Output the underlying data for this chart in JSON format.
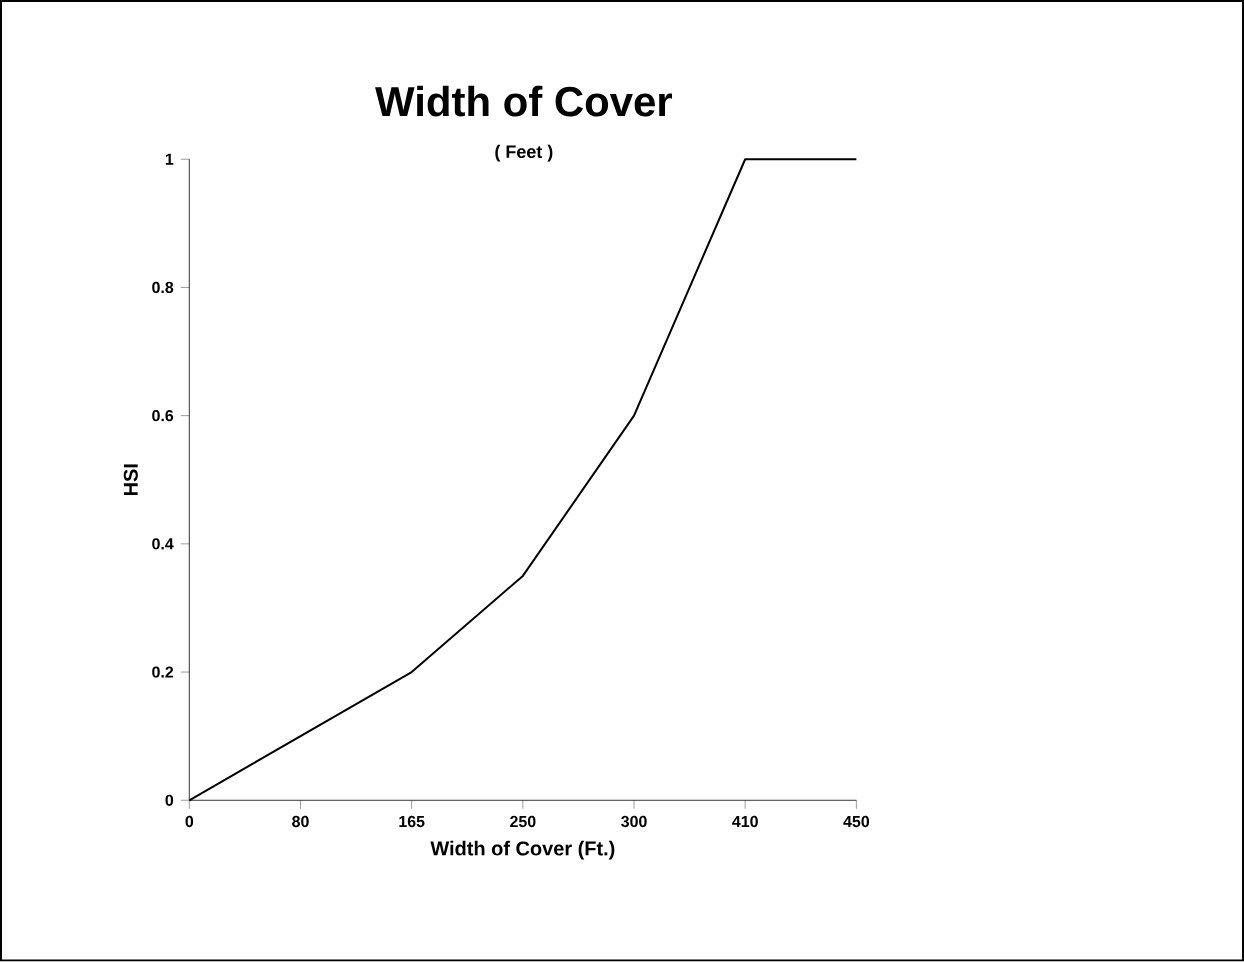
{
  "chart_data": {
    "type": "line",
    "title": "Width of Cover",
    "subtitle": "( Feet )",
    "xlabel": "Width of Cover (Ft.)",
    "ylabel": "HSI",
    "categories": [
      "0",
      "80",
      "165",
      "250",
      "300",
      "410",
      "450"
    ],
    "values": [
      0,
      0.1,
      0.2,
      0.35,
      0.6,
      1,
      1
    ],
    "color": "#000000",
    "ylim": [
      0,
      1
    ],
    "yticks": [
      0,
      0.2,
      0.4,
      0.6,
      0.8,
      1
    ],
    "grid": false,
    "line_style": "solid"
  }
}
